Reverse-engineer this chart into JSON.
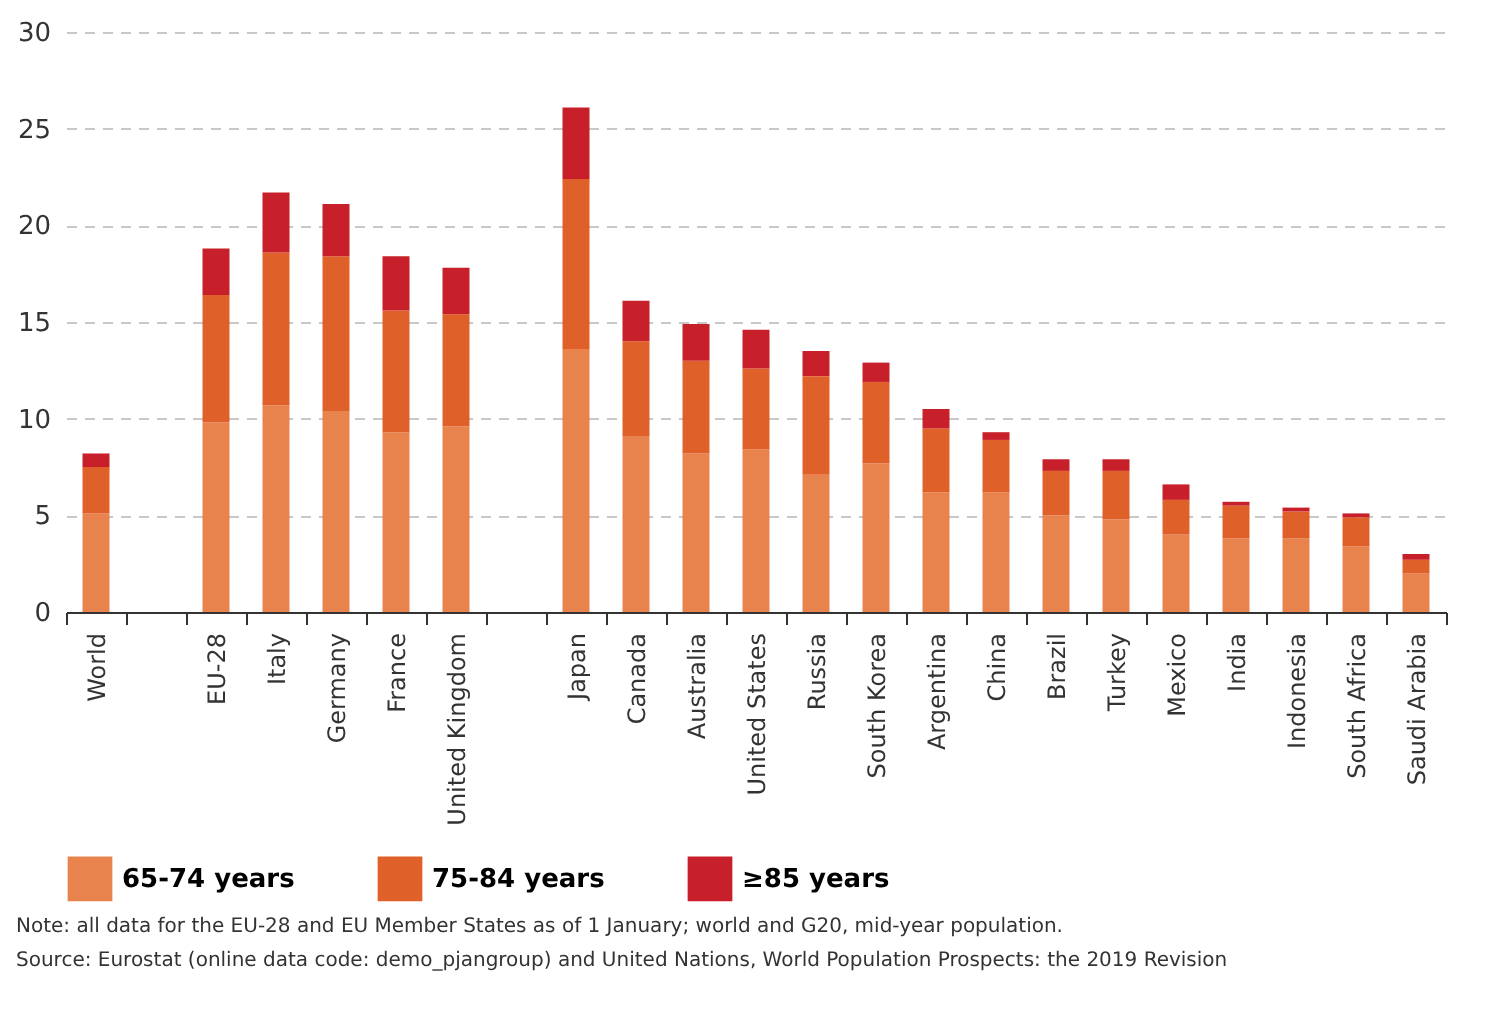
{
  "chart_data": {
    "type": "bar",
    "stacked": true,
    "categories": [
      "World",
      null,
      "EU-28",
      "Italy",
      "Germany",
      "France",
      "United Kingdom",
      null,
      "Japan",
      "Canada",
      "Australia",
      "United States",
      "Russia",
      "South Korea",
      "Argentina",
      "China",
      "Brazil",
      "Turkey",
      "Mexico",
      "India",
      "Indonesia",
      "South Africa",
      "Saudi Arabia"
    ],
    "series": [
      {
        "name": "65-74 years",
        "color": "#e8834e",
        "values": [
          5.1,
          null,
          9.8,
          10.7,
          10.4,
          9.3,
          9.6,
          null,
          13.6,
          9.1,
          8.2,
          8.4,
          7.1,
          7.7,
          6.2,
          6.2,
          5.0,
          4.8,
          4.0,
          3.8,
          3.8,
          3.4,
          2.0
        ]
      },
      {
        "name": "75-84 years",
        "color": "#e0602a",
        "values": [
          2.4,
          null,
          6.6,
          7.9,
          8.0,
          6.3,
          5.8,
          null,
          8.8,
          4.9,
          4.8,
          4.2,
          5.1,
          4.2,
          3.3,
          2.7,
          2.3,
          2.5,
          1.8,
          1.7,
          1.4,
          1.5,
          0.7
        ]
      },
      {
        "name": "≥85 years",
        "color": "#c8202a",
        "values": [
          0.7,
          null,
          2.4,
          3.1,
          2.7,
          2.8,
          2.4,
          null,
          3.7,
          2.1,
          1.9,
          2.0,
          1.3,
          1.0,
          1.0,
          0.4,
          0.6,
          0.6,
          0.8,
          0.2,
          0.2,
          0.2,
          0.3
        ]
      }
    ],
    "ylim": [
      0,
      30
    ],
    "yticks": [
      0,
      5,
      10,
      15,
      20,
      25,
      30
    ],
    "grid": "y",
    "legend": "bottom",
    "annotations": [
      "Note: all data for the EU-28 and EU Member States as of 1 January; world and G20, mid-year population.",
      "Source: Eurostat (online data code: demo_pjangroup) and United Nations, World Population Prospects: the 2019 Revision"
    ]
  }
}
